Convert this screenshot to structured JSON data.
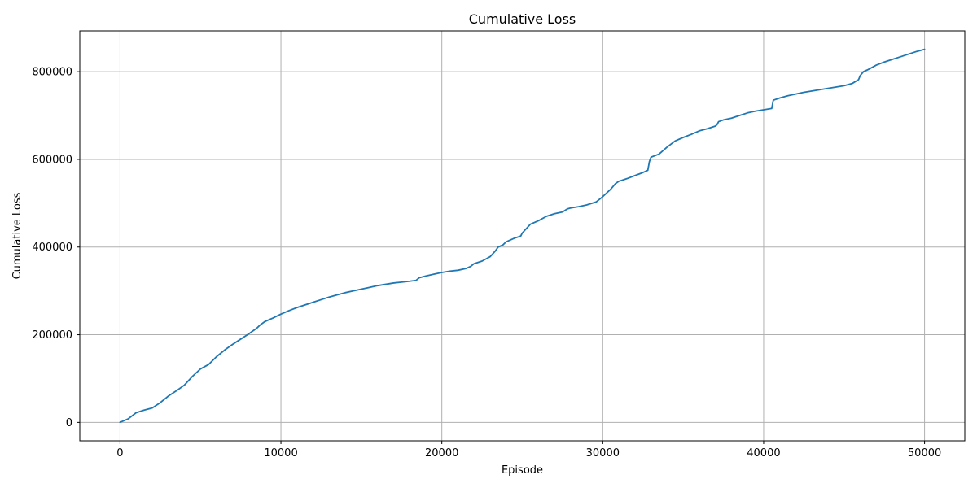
{
  "chart_data": {
    "type": "line",
    "title": "Cumulative Loss",
    "xlabel": "Episode",
    "ylabel": "Cumulative Loss",
    "xlim": [
      -2500,
      52500
    ],
    "ylim": [
      -42000,
      893000
    ],
    "xticks": [
      0,
      10000,
      20000,
      30000,
      40000,
      50000
    ],
    "xtick_labels": [
      "0",
      "10000",
      "20000",
      "30000",
      "40000",
      "50000"
    ],
    "yticks": [
      0,
      200000,
      400000,
      600000,
      800000
    ],
    "ytick_labels": [
      "0",
      "200000",
      "400000",
      "600000",
      "800000"
    ],
    "grid": true,
    "line_color": "#1f77b4",
    "series": [
      {
        "x": [
          0,
          500,
          1000,
          1500,
          2000,
          2500,
          3000,
          3500,
          4000,
          4500,
          5000,
          5500,
          6000,
          6500,
          7000,
          7500,
          8000,
          8500,
          8700,
          9000,
          9500,
          10000,
          10500,
          11000,
          11500,
          12000,
          12500,
          13000,
          13500,
          14000,
          14500,
          15000,
          15500,
          16000,
          16500,
          17000,
          17500,
          18000,
          18400,
          18600,
          19000,
          19500,
          20000,
          20500,
          21000,
          21500,
          21800,
          22000,
          22500,
          23000,
          23300,
          23500,
          23800,
          24000,
          24500,
          24900,
          25000,
          25200,
          25500,
          26000,
          26500,
          27000,
          27500,
          27800,
          28000,
          28500,
          29000,
          29600,
          30000,
          30500,
          30800,
          31000,
          31500,
          32000,
          32500,
          32800,
          32900,
          33000,
          33500,
          34000,
          34500,
          35000,
          35500,
          36000,
          36500,
          37000,
          37100,
          37200,
          37500,
          38000,
          38500,
          39000,
          39500,
          40000,
          40500,
          40600,
          41000,
          41500,
          42000,
          42500,
          43000,
          43500,
          44000,
          44500,
          45000,
          45500,
          45900,
          46000,
          46200,
          46500,
          47000,
          47500,
          48000,
          48500,
          49000,
          49500,
          50000
        ],
        "values": [
          0,
          8000,
          22000,
          28000,
          33000,
          45000,
          60000,
          72000,
          85000,
          105000,
          122000,
          132000,
          150000,
          165000,
          178000,
          190000,
          202000,
          215000,
          222000,
          230000,
          238000,
          247000,
          255000,
          262000,
          268000,
          274000,
          280000,
          286000,
          291000,
          296000,
          300000,
          304000,
          308000,
          312000,
          315000,
          318000,
          320000,
          322000,
          324000,
          330000,
          334000,
          338000,
          342000,
          345000,
          347000,
          351000,
          356000,
          362000,
          368000,
          378000,
          390000,
          400000,
          405000,
          412000,
          420000,
          425000,
          432000,
          440000,
          452000,
          460000,
          470000,
          476000,
          480000,
          487000,
          489000,
          492000,
          496000,
          503000,
          515000,
          532000,
          545000,
          550000,
          556000,
          563000,
          570000,
          575000,
          595000,
          605000,
          612000,
          628000,
          642000,
          650000,
          657000,
          665000,
          670000,
          676000,
          679000,
          686000,
          690000,
          694000,
          700000,
          706000,
          710000,
          713000,
          716000,
          735000,
          740000,
          745000,
          749000,
          753000,
          756000,
          759000,
          762000,
          765000,
          768000,
          773000,
          782000,
          791000,
          800000,
          805000,
          815000,
          822000,
          828000,
          834000,
          840000,
          846000,
          851000
        ]
      }
    ]
  }
}
